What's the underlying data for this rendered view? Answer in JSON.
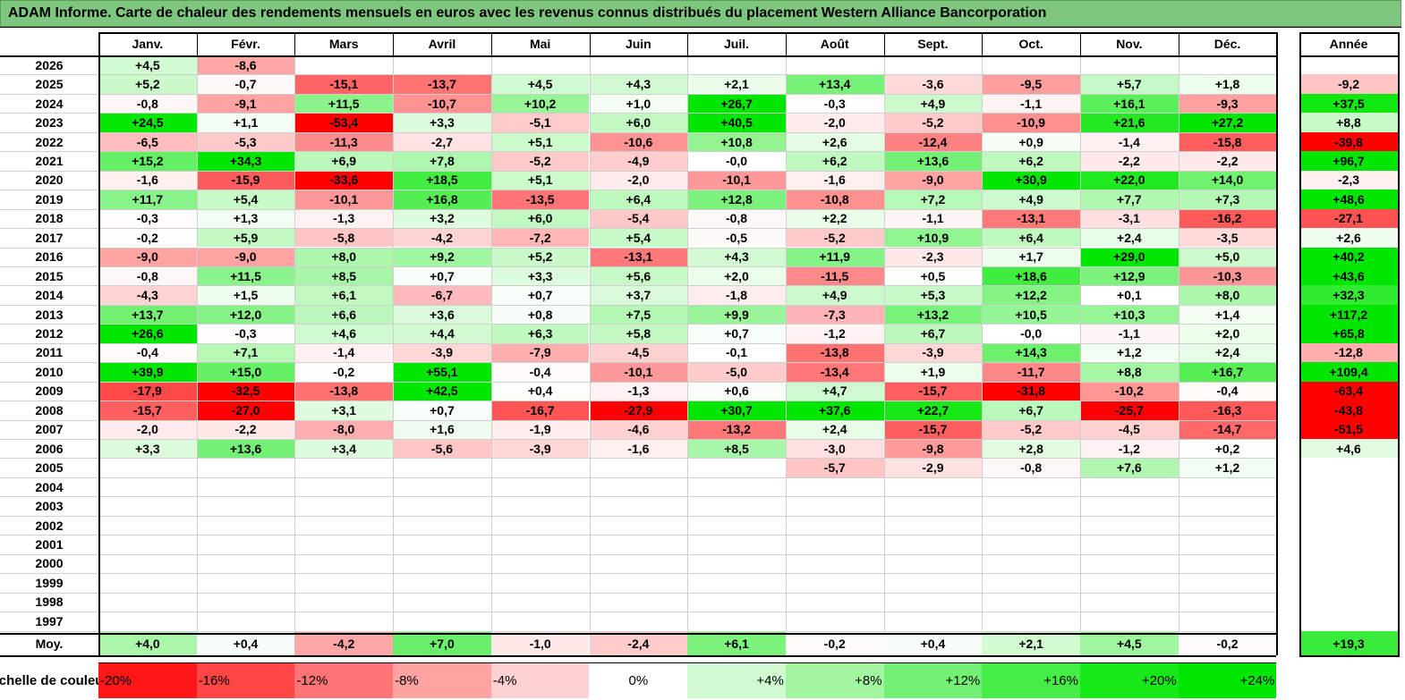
{
  "title": "ADAM Informe. Carte de chaleur des rendements mensuels en euros avec les revenus connus distribués du placement Western Alliance Bancorporation",
  "chart_data": {
    "type": "heatmap",
    "columns": [
      "Janv.",
      "Févr.",
      "Mars",
      "Avril",
      "Mai",
      "Juin",
      "Juil.",
      "Août",
      "Sept.",
      "Oct.",
      "Nov.",
      "Déc."
    ],
    "year_column": "Année",
    "rows": [
      {
        "year": "2026",
        "months": [
          "+4,5",
          "-8,6",
          "",
          "",
          "",
          "",
          "",
          "",
          "",
          "",
          "",
          ""
        ],
        "annual": ""
      },
      {
        "year": "2025",
        "months": [
          "+5,2",
          "-0,7",
          "-15,1",
          "-13,7",
          "+4,5",
          "+4,3",
          "+2,1",
          "+13,4",
          "-3,6",
          "-9,5",
          "+5,7",
          "+1,8"
        ],
        "annual": "-9,2"
      },
      {
        "year": "2024",
        "months": [
          "-0,8",
          "-9,1",
          "+11,5",
          "-10,7",
          "+10,2",
          "+1,0",
          "+26,7",
          "-0,3",
          "+4,9",
          "-1,1",
          "+16,1",
          "-9,3"
        ],
        "annual": "+37,5"
      },
      {
        "year": "2023",
        "months": [
          "+24,5",
          "+1,1",
          "-53,4",
          "+3,3",
          "-5,1",
          "+6,0",
          "+40,5",
          "-2,0",
          "-5,2",
          "-10,9",
          "+21,6",
          "+27,2"
        ],
        "annual": "+8,8"
      },
      {
        "year": "2022",
        "months": [
          "-6,5",
          "-5,3",
          "-11,3",
          "-2,7",
          "+5,1",
          "-10,6",
          "+10,8",
          "+2,6",
          "-12,4",
          "+0,9",
          "-1,4",
          "-15,8"
        ],
        "annual": "-39,8"
      },
      {
        "year": "2021",
        "months": [
          "+15,2",
          "+34,3",
          "+6,9",
          "+7,8",
          "-5,2",
          "-4,9",
          "-0,0",
          "+6,2",
          "+13,6",
          "+6,2",
          "-2,2",
          "-2,2"
        ],
        "annual": "+96,7"
      },
      {
        "year": "2020",
        "months": [
          "-1,6",
          "-15,9",
          "-33,6",
          "+18,5",
          "+5,1",
          "-2,0",
          "-10,1",
          "-1,6",
          "-9,0",
          "+30,9",
          "+22,0",
          "+14,0"
        ],
        "annual": "-2,3"
      },
      {
        "year": "2019",
        "months": [
          "+11,7",
          "+5,4",
          "-10,1",
          "+16,8",
          "-13,5",
          "+6,4",
          "+12,8",
          "-10,8",
          "+7,2",
          "+4,9",
          "+7,7",
          "+7,3"
        ],
        "annual": "+48,6"
      },
      {
        "year": "2018",
        "months": [
          "-0,3",
          "+1,3",
          "-1,3",
          "+3,2",
          "+6,0",
          "-5,4",
          "-0,8",
          "+2,2",
          "-1,1",
          "-13,1",
          "-3,1",
          "-16,2"
        ],
        "annual": "-27,1"
      },
      {
        "year": "2017",
        "months": [
          "-0,2",
          "+5,9",
          "-5,8",
          "-4,2",
          "-7,2",
          "+5,4",
          "-0,5",
          "-5,2",
          "+10,9",
          "+6,4",
          "+2,4",
          "-3,5"
        ],
        "annual": "+2,6"
      },
      {
        "year": "2016",
        "months": [
          "-9,0",
          "-9,0",
          "+8,0",
          "+9,2",
          "+5,2",
          "-13,1",
          "+4,3",
          "+11,9",
          "-2,3",
          "+1,7",
          "+29,0",
          "+5,0"
        ],
        "annual": "+40,2"
      },
      {
        "year": "2015",
        "months": [
          "-0,8",
          "+11,5",
          "+8,5",
          "+0,7",
          "+3,3",
          "+5,6",
          "+2,0",
          "-11,5",
          "+0,5",
          "+18,6",
          "+12,9",
          "-10,3"
        ],
        "annual": "+43,6"
      },
      {
        "year": "2014",
        "months": [
          "-4,3",
          "+1,5",
          "+6,1",
          "-6,7",
          "+0,7",
          "+3,7",
          "-1,8",
          "+4,9",
          "+5,3",
          "+12,2",
          "+0,1",
          "+8,0"
        ],
        "annual": "+32,3"
      },
      {
        "year": "2013",
        "months": [
          "+13,7",
          "+12,0",
          "+6,6",
          "+3,6",
          "+0,8",
          "+7,5",
          "+9,9",
          "-7,3",
          "+13,2",
          "+10,5",
          "+10,3",
          "+1,4"
        ],
        "annual": "+117,2"
      },
      {
        "year": "2012",
        "months": [
          "+26,6",
          "-0,3",
          "+4,6",
          "+4,4",
          "+6,3",
          "+5,8",
          "+0,7",
          "-1,2",
          "+6,7",
          "-0,0",
          "-1,1",
          "+2,0"
        ],
        "annual": "+65,8"
      },
      {
        "year": "2011",
        "months": [
          "-0,4",
          "+7,1",
          "-1,4",
          "-3,9",
          "-7,9",
          "-4,5",
          "-0,1",
          "-13,8",
          "-3,9",
          "+14,3",
          "+1,2",
          "+2,4"
        ],
        "annual": "-12,8"
      },
      {
        "year": "2010",
        "months": [
          "+39,9",
          "+15,0",
          "-0,2",
          "+55,1",
          "-0,4",
          "-10,1",
          "-5,0",
          "-13,4",
          "+1,9",
          "-11,7",
          "+8,8",
          "+16,7"
        ],
        "annual": "+109,4"
      },
      {
        "year": "2009",
        "months": [
          "-17,9",
          "-32,5",
          "-13,8",
          "+42,5",
          "+0,4",
          "-1,3",
          "+0,6",
          "+4,7",
          "-15,7",
          "-31,8",
          "-10,2",
          "-0,4"
        ],
        "annual": "-63,4"
      },
      {
        "year": "2008",
        "months": [
          "-15,7",
          "-27,0",
          "+3,1",
          "+0,7",
          "-16,7",
          "-27,9",
          "+30,7",
          "+37,6",
          "+22,7",
          "+6,7",
          "-25,7",
          "-16,3"
        ],
        "annual": "-43,8"
      },
      {
        "year": "2007",
        "months": [
          "-2,0",
          "-2,2",
          "-8,0",
          "+1,6",
          "-1,9",
          "-4,6",
          "-13,2",
          "+2,4",
          "-15,7",
          "-5,2",
          "-4,5",
          "-14,7"
        ],
        "annual": "-51,5"
      },
      {
        "year": "2006",
        "months": [
          "+3,3",
          "+13,6",
          "+3,4",
          "-5,6",
          "-3,9",
          "-1,6",
          "+8,5",
          "-3,0",
          "-9,8",
          "+2,8",
          "-1,2",
          "+0,2"
        ],
        "annual": "+4,6"
      },
      {
        "year": "2005",
        "months": [
          "",
          "",
          "",
          "",
          "",
          "",
          "",
          "-5,7",
          "-2,9",
          "-0,8",
          "+7,6",
          "+1,2"
        ],
        "annual": ""
      },
      {
        "year": "2004",
        "months": [
          "",
          "",
          "",
          "",
          "",
          "",
          "",
          "",
          "",
          "",
          "",
          ""
        ],
        "annual": ""
      },
      {
        "year": "2003",
        "months": [
          "",
          "",
          "",
          "",
          "",
          "",
          "",
          "",
          "",
          "",
          "",
          ""
        ],
        "annual": ""
      },
      {
        "year": "2002",
        "months": [
          "",
          "",
          "",
          "",
          "",
          "",
          "",
          "",
          "",
          "",
          "",
          ""
        ],
        "annual": ""
      },
      {
        "year": "2001",
        "months": [
          "",
          "",
          "",
          "",
          "",
          "",
          "",
          "",
          "",
          "",
          "",
          ""
        ],
        "annual": ""
      },
      {
        "year": "2000",
        "months": [
          "",
          "",
          "",
          "",
          "",
          "",
          "",
          "",
          "",
          "",
          "",
          ""
        ],
        "annual": ""
      },
      {
        "year": "1999",
        "months": [
          "",
          "",
          "",
          "",
          "",
          "",
          "",
          "",
          "",
          "",
          "",
          ""
        ],
        "annual": ""
      },
      {
        "year": "1998",
        "months": [
          "",
          "",
          "",
          "",
          "",
          "",
          "",
          "",
          "",
          "",
          "",
          ""
        ],
        "annual": ""
      },
      {
        "year": "1997",
        "months": [
          "",
          "",
          "",
          "",
          "",
          "",
          "",
          "",
          "",
          "",
          "",
          ""
        ],
        "annual": ""
      }
    ],
    "average": {
      "label": "Moy.",
      "months": [
        "+4,0",
        "+0,4",
        "-4,2",
        "+7,0",
        "-1,0",
        "-2,4",
        "+6,1",
        "-0,2",
        "+0,4",
        "+2,1",
        "+4,5",
        "-0,2"
      ],
      "annual": "+19,3"
    },
    "scale": {
      "label": "Echelle de couleur",
      "steps": [
        "-20%",
        "-16%",
        "-12%",
        "-8%",
        "-4%",
        "0%",
        "+4%",
        "+8%",
        "+12%",
        "+16%",
        "+20%",
        "+24%"
      ]
    }
  }
}
